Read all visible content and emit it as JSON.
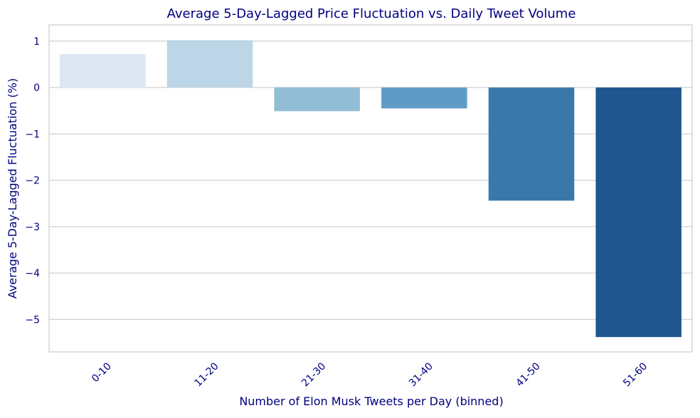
{
  "chart_data": {
    "type": "bar",
    "title": "Average 5-Day-Lagged Price Fluctuation vs. Daily Tweet Volume",
    "xlabel": "Number of Elon Musk Tweets per Day (binned)",
    "ylabel": "Average 5-Day-Lagged Fluctuation (%)",
    "categories": [
      "0-10",
      "11-20",
      "21-30",
      "31-40",
      "41-50",
      "51-60"
    ],
    "values": [
      0.72,
      1.02,
      -0.51,
      -0.45,
      -2.44,
      -5.38
    ],
    "colors": [
      "#dce7f3",
      "#bdd6e7",
      "#92bdd6",
      "#5f9bc4",
      "#3b78aa",
      "#1f5690"
    ],
    "ylim": [
      -5.7,
      1.35
    ],
    "yticks": [
      1,
      0,
      -1,
      -2,
      -3,
      -4,
      -5
    ],
    "ytick_labels": [
      "1",
      "0",
      "−1",
      "−2",
      "−3",
      "−4",
      "−5"
    ],
    "grid": "horizontal",
    "text_color": "#000080"
  }
}
